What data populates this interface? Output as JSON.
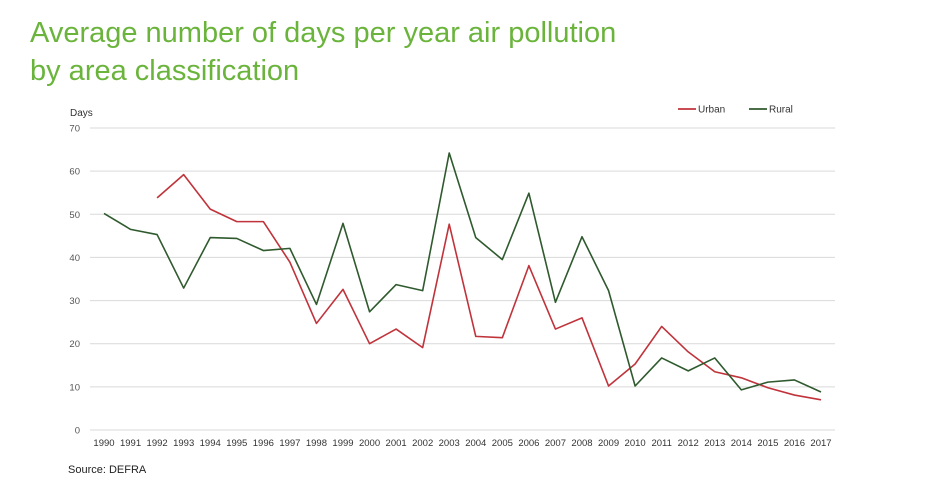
{
  "title_lines": [
    "Average number of days per year air pollution",
    "by area classification"
  ],
  "source": "Source: DEFRA",
  "colors": {
    "title": "#6ab43c",
    "urban": "#c0333b",
    "rural": "#2f5a2e",
    "grid": "#d9d9d9",
    "axis_text": "#555555"
  },
  "chart_data": {
    "type": "line",
    "title": "Average number of days per year air pollution by area classification",
    "ylabel": "Days",
    "xlabel": "",
    "ylim": [
      0,
      70
    ],
    "yticks": [
      0,
      10,
      20,
      30,
      40,
      50,
      60,
      70
    ],
    "grid": true,
    "legend_position": "top-right",
    "x": [
      "1990",
      "1991",
      "1992",
      "1993",
      "1994",
      "1995",
      "1996",
      "1997",
      "1998",
      "1999",
      "2000",
      "2001",
      "2002",
      "2003",
      "2004",
      "2005",
      "2006",
      "2007",
      "2008",
      "2009",
      "2010",
      "2011",
      "2012",
      "2013",
      "2014",
      "2015",
      "2016",
      "2017"
    ],
    "series": [
      {
        "name": "Urban",
        "color": "#c0333b",
        "values": [
          null,
          null,
          53.8,
          59.2,
          51.2,
          48.3,
          48.3,
          38.9,
          24.7,
          32.6,
          20.0,
          23.4,
          19.1,
          47.7,
          21.7,
          21.4,
          38.1,
          23.4,
          26.0,
          10.2,
          15.3,
          24.0,
          18.1,
          13.5,
          12.1,
          9.8,
          8.1,
          7.0
        ]
      },
      {
        "name": "Rural",
        "color": "#2f5a2e",
        "values": [
          50.2,
          46.5,
          45.3,
          32.9,
          44.6,
          44.4,
          41.6,
          42.1,
          29.1,
          47.9,
          27.4,
          33.7,
          32.3,
          64.2,
          44.6,
          39.5,
          54.9,
          29.6,
          44.8,
          32.3,
          10.2,
          16.7,
          13.7,
          16.7,
          9.3,
          11.1,
          11.6,
          8.8
        ]
      }
    ]
  }
}
